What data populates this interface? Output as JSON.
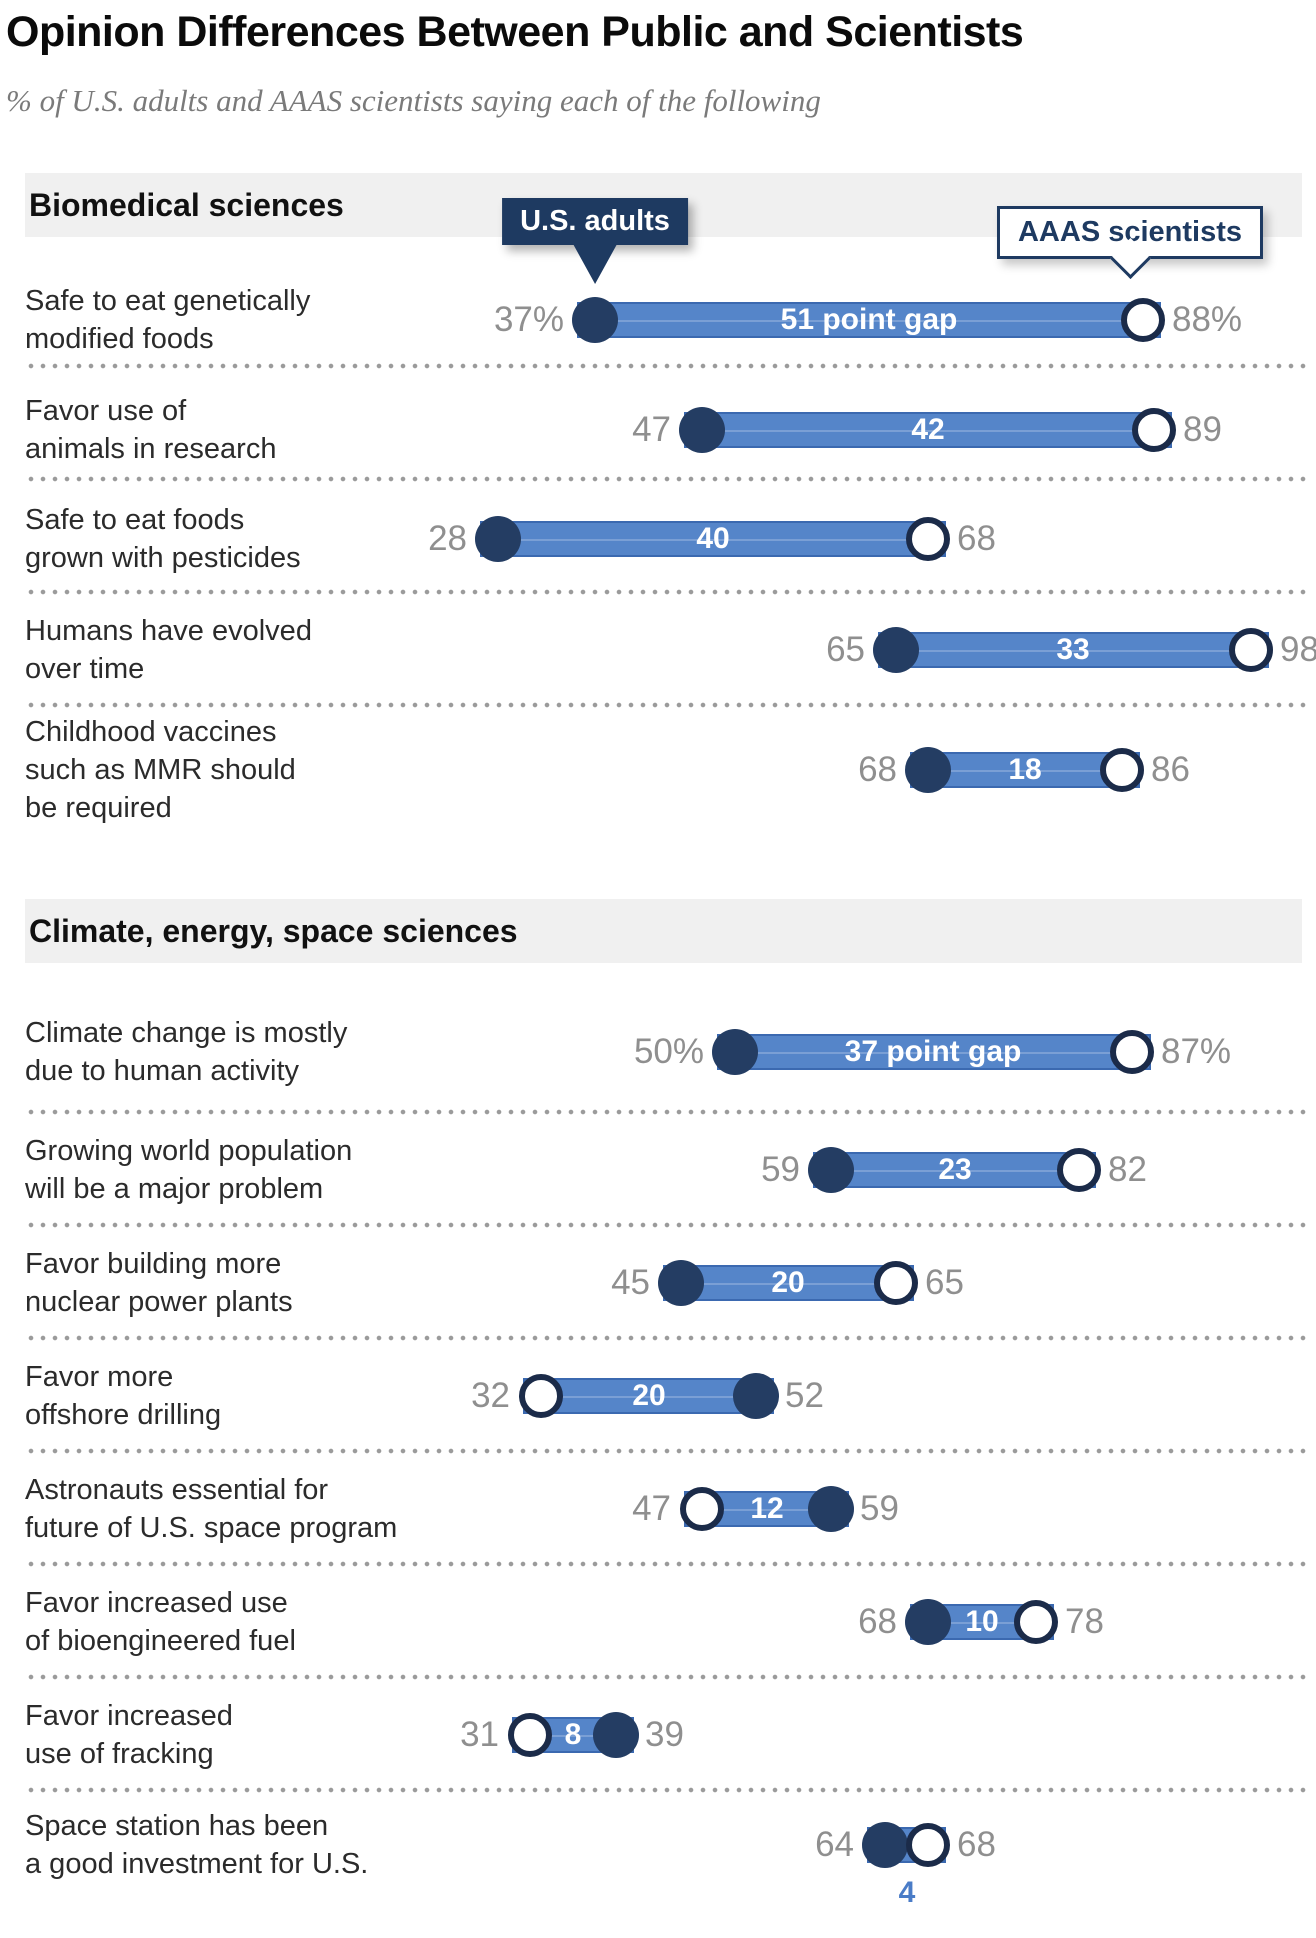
{
  "title": "Opinion Differences Between Public and Scientists",
  "subtitle": "% of U.S. adults and AAAS scientists saying each of the following",
  "legend": {
    "adults_label": "U.S. adults",
    "scientists_label": "AAAS scientists"
  },
  "colors": {
    "bar": "#5585c9",
    "bar_border": "#3b69b0",
    "adults_dot": "#243d63",
    "scientists_ring": "#1b2b49",
    "value_text": "#8f8f8f",
    "gap_text": "#ffffff",
    "gap_below_text": "#4a7cc7",
    "section_band": "#f0f0f0",
    "navy_callout": "#1e3a61"
  },
  "chart_data": {
    "type": "dumbbell",
    "series_names": [
      "U.S. adults",
      "AAAS scientists"
    ],
    "axis": {
      "min": 0,
      "max": 100,
      "unit": "percent"
    },
    "legend_position": "top, callouts pointing at first-row dots",
    "sections": [
      {
        "header": "Biomedical sciences",
        "rows": [
          {
            "label": "Safe to eat genetically modified foods",
            "label_lines": [
              "Safe to eat genetically",
              "modified foods"
            ],
            "us_adults": 37,
            "aaas_scientists": 88,
            "adults_display": "37%",
            "scientists_display": "88%",
            "gap": 51,
            "gap_label": "51 point gap",
            "gap_position": "inside"
          },
          {
            "label": "Favor use of animals in research",
            "label_lines": [
              "Favor use of",
              "animals in research"
            ],
            "us_adults": 47,
            "aaas_scientists": 89,
            "adults_display": "47",
            "scientists_display": "89",
            "gap": 42,
            "gap_label": "42",
            "gap_position": "inside"
          },
          {
            "label": "Safe to eat foods grown with pesticides",
            "label_lines": [
              "Safe to eat foods",
              "grown with pesticides"
            ],
            "us_adults": 28,
            "aaas_scientists": 68,
            "adults_display": "28",
            "scientists_display": "68",
            "gap": 40,
            "gap_label": "40",
            "gap_position": "inside"
          },
          {
            "label": "Humans have evolved over time",
            "label_lines": [
              "Humans have evolved",
              "over time"
            ],
            "us_adults": 65,
            "aaas_scientists": 98,
            "adults_display": "65",
            "scientists_display": "98",
            "gap": 33,
            "gap_label": "33",
            "gap_position": "inside"
          },
          {
            "label": "Childhood vaccines such as MMR should be required",
            "label_lines": [
              "Childhood vaccines",
              "such as MMR should",
              "be required"
            ],
            "us_adults": 68,
            "aaas_scientists": 86,
            "adults_display": "68",
            "scientists_display": "86",
            "gap": 18,
            "gap_label": "18",
            "gap_position": "inside"
          }
        ]
      },
      {
        "header": "Climate, energy, space sciences",
        "rows": [
          {
            "label": "Climate change is mostly due to human activity",
            "label_lines": [
              "Climate change is mostly",
              "due to human activity"
            ],
            "us_adults": 50,
            "aaas_scientists": 87,
            "adults_display": "50%",
            "scientists_display": "87%",
            "gap": 37,
            "gap_label": "37 point gap",
            "gap_position": "inside"
          },
          {
            "label": "Growing world population will be a major problem",
            "label_lines": [
              "Growing world population",
              "will be a major problem"
            ],
            "us_adults": 59,
            "aaas_scientists": 82,
            "adults_display": "59",
            "scientists_display": "82",
            "gap": 23,
            "gap_label": "23",
            "gap_position": "inside"
          },
          {
            "label": "Favor building more nuclear power plants",
            "label_lines": [
              "Favor building more",
              "nuclear power plants"
            ],
            "us_adults": 45,
            "aaas_scientists": 65,
            "adults_display": "45",
            "scientists_display": "65",
            "gap": 20,
            "gap_label": "20",
            "gap_position": "inside"
          },
          {
            "label": "Favor more offshore drilling",
            "label_lines": [
              "Favor more",
              "offshore drilling"
            ],
            "us_adults": 52,
            "aaas_scientists": 32,
            "adults_display": "52",
            "scientists_display": "32",
            "gap": 20,
            "gap_label": "20",
            "gap_position": "inside"
          },
          {
            "label": "Astronauts essential for future of U.S. space program",
            "label_lines": [
              "Astronauts essential for",
              "future of U.S. space program"
            ],
            "us_adults": 59,
            "aaas_scientists": 47,
            "adults_display": "59",
            "scientists_display": "47",
            "gap": 12,
            "gap_label": "12",
            "gap_position": "inside"
          },
          {
            "label": "Favor increased use of bioengineered fuel",
            "label_lines": [
              "Favor increased use",
              "of bioengineered fuel"
            ],
            "us_adults": 68,
            "aaas_scientists": 78,
            "adults_display": "68",
            "scientists_display": "78",
            "gap": 10,
            "gap_label": "10",
            "gap_position": "inside"
          },
          {
            "label": "Favor increased use of fracking",
            "label_lines": [
              "Favor increased",
              "use of fracking"
            ],
            "us_adults": 39,
            "aaas_scientists": 31,
            "adults_display": "39",
            "scientists_display": "31",
            "gap": 8,
            "gap_label": "8",
            "gap_position": "inside"
          },
          {
            "label": "Space station has been a good investment for U.S.",
            "label_lines": [
              "Space station has been",
              "a good investment for U.S."
            ],
            "us_adults": 64,
            "aaas_scientists": 68,
            "adults_display": "64",
            "scientists_display": "68",
            "gap": 4,
            "gap_label": "4",
            "gap_position": "below"
          }
        ]
      }
    ]
  }
}
